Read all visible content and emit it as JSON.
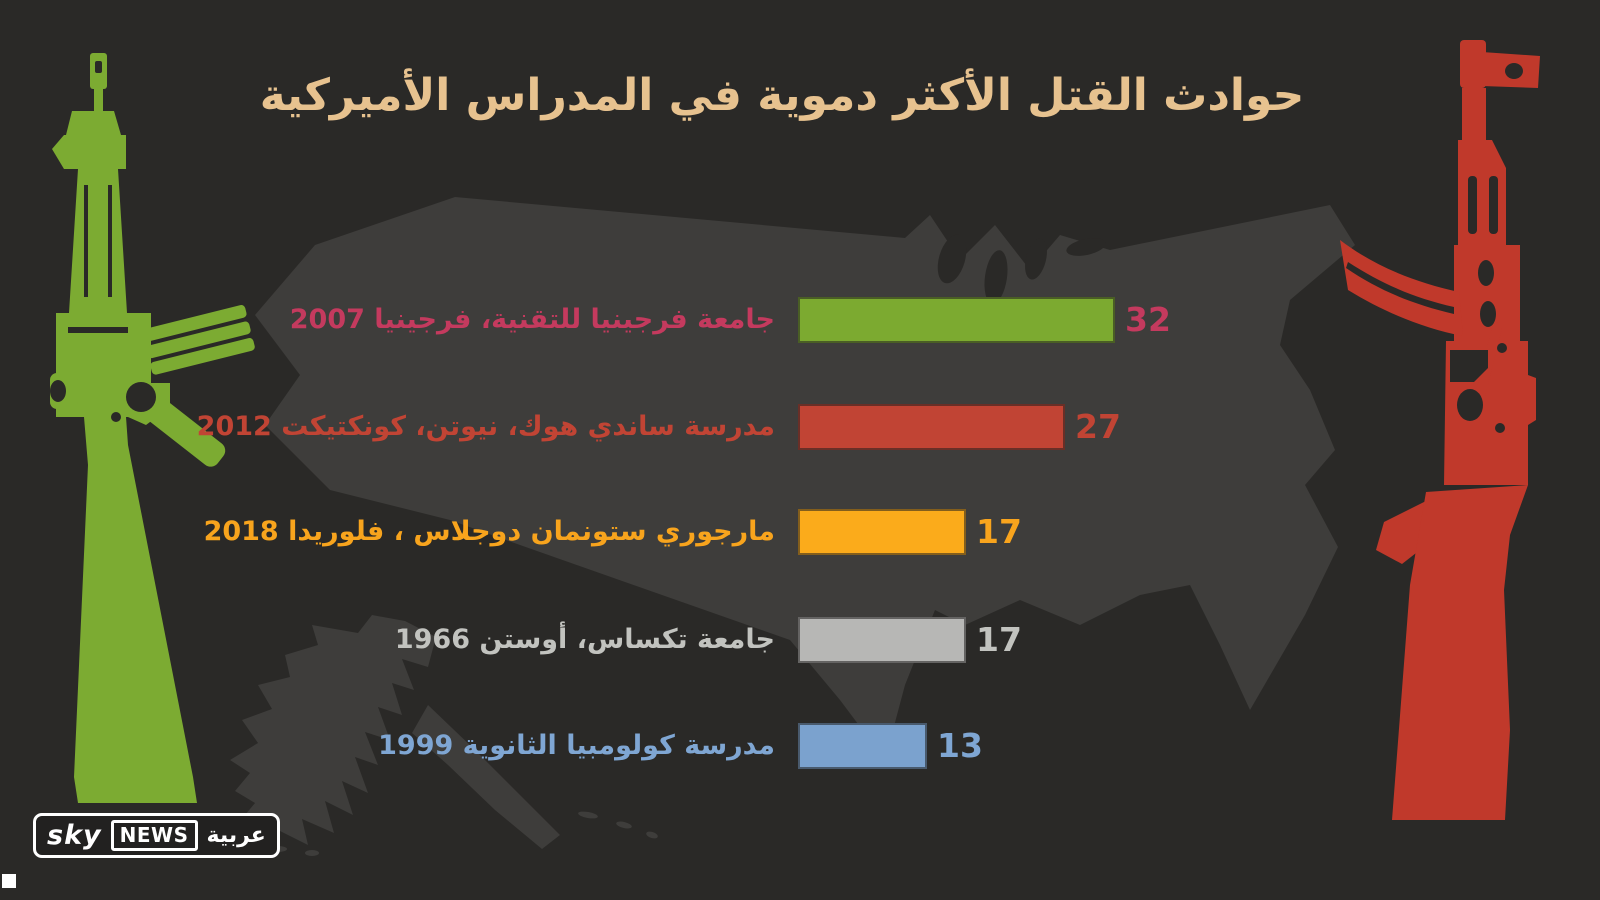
{
  "title": "حوادث القتل الأكثر دموية في المدراس الأميركية",
  "colors": {
    "background": "#2a2927",
    "map": "#3e3d3b",
    "title": "#e7c28f",
    "rifle_left_green": "#7cab32",
    "rifle_right_red": "#c0392b",
    "logo_white": "#ffffff"
  },
  "chart_data": {
    "type": "bar",
    "orientation": "horizontal",
    "title": "حوادث القتل الأكثر دموية في المدراس الأميركية",
    "xlim": [
      0,
      32
    ],
    "grid": false,
    "legend": false,
    "categories": [
      "جامعة فرجينيا للتقنية، فرجينيا 2007",
      "مدرسة ساندي هوك، نيوتن، كونكتيكت 2012",
      "مارجوري ستونمان دوجلاس ، فلوريدا 2018",
      "جامعة تكساس، أوستن 1966",
      "مدرسة كولومبيا الثانوية 1999"
    ],
    "values": [
      32,
      27,
      17,
      17,
      13
    ],
    "rows": [
      {
        "label": "جامعة فرجينيا للتقنية، فرجينيا 2007",
        "value": 32,
        "bar_color": "#7caa30",
        "text_color": "#c43a5e"
      },
      {
        "label": "مدرسة ساندي هوك، نيوتن، كونكتيكت 2012",
        "value": 27,
        "bar_color": "#c14434",
        "text_color": "#c14434"
      },
      {
        "label": "مارجوري ستونمان دوجلاس ، فلوريدا 2018",
        "value": 17,
        "bar_color": "#fbab1b",
        "text_color": "#f8a41d"
      },
      {
        "label": "جامعة تكساس، أوستن 1966",
        "value": 17,
        "bar_color": "#b7b7b5",
        "text_color": "#c2c3bf"
      },
      {
        "label": "مدرسة كولومبيا الثانوية 1999",
        "value": 13,
        "bar_color": "#7ba2ce",
        "text_color": "#7fa6d3"
      }
    ]
  },
  "logo": {
    "sky": "sky",
    "news": "NEWS",
    "arabic": "عربية"
  },
  "icons": {
    "left": "m16-rifle-icon",
    "right": "ak47-rifle-icon",
    "background_map": "usa-map-silhouette"
  }
}
